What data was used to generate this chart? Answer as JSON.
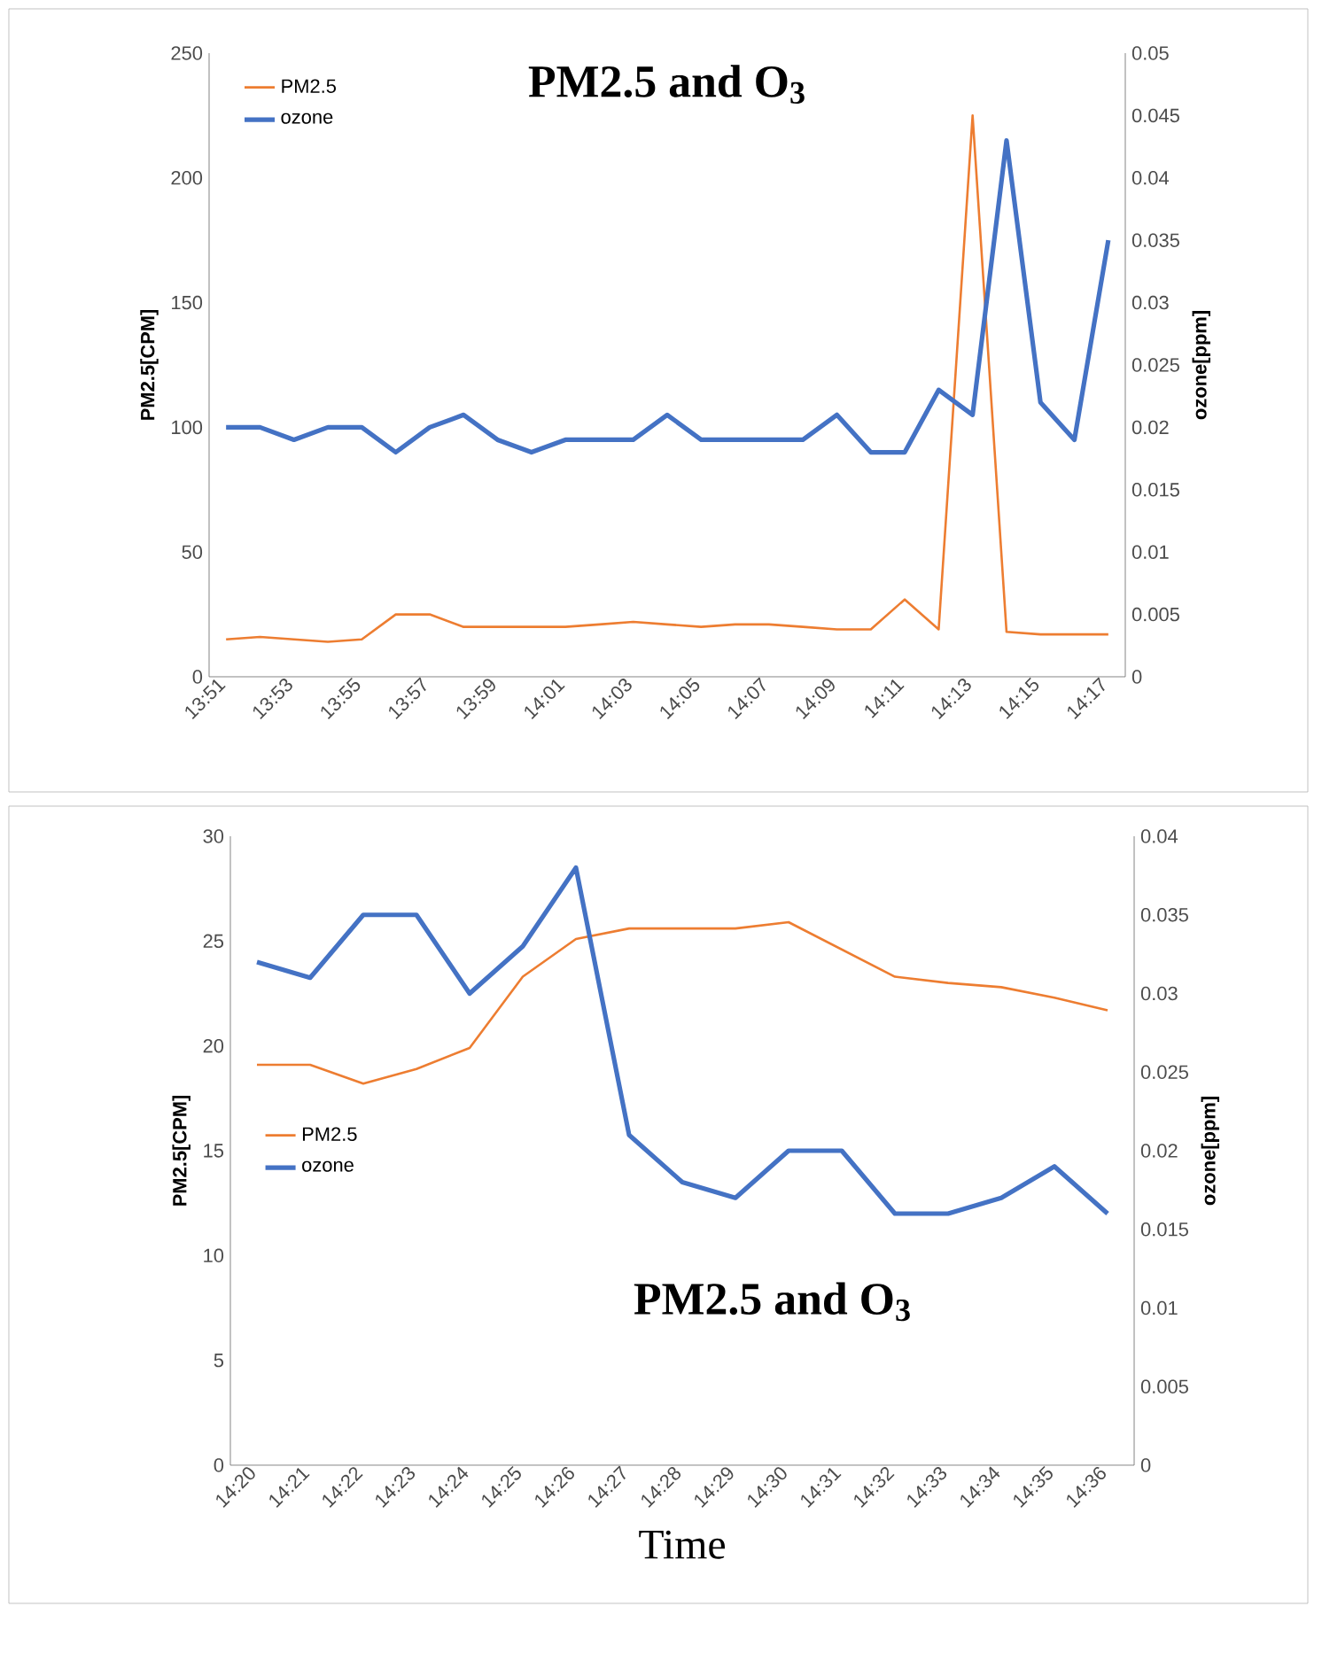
{
  "chart_data": [
    {
      "type": "line",
      "title": "PM2.5 and O$_{3}$",
      "ylabel": "PM2.5[CPM]",
      "y2label": "ozone[ppm]",
      "categories": [
        "13:51",
        null,
        "13:53",
        null,
        "13:55",
        null,
        "13:57",
        null,
        "13:59",
        null,
        "14:01",
        null,
        "14:03",
        null,
        "14:05",
        null,
        "14:07",
        null,
        "14:09",
        null,
        "14:11",
        null,
        "14:13",
        null,
        "14:15",
        null,
        "14:17"
      ],
      "ylim": [
        0,
        250
      ],
      "yticks": [
        0,
        50,
        100,
        150,
        200,
        250
      ],
      "y2lim": [
        0,
        0.05
      ],
      "y2ticks": [
        0,
        0.005,
        0.01,
        0.015,
        0.02,
        0.025,
        0.03,
        0.035,
        0.04,
        0.045,
        0.05
      ],
      "legend": "top left",
      "series": [
        {
          "name": "PM2.5",
          "color": "#ed7d31",
          "values": [
            15,
            16,
            15,
            14,
            15,
            25,
            25,
            20,
            20,
            20,
            20,
            21,
            22,
            21,
            20,
            21,
            21,
            20,
            19,
            19,
            31,
            19,
            225,
            18,
            17,
            17,
            17
          ]
        },
        {
          "name": "ozone",
          "color": "#4472c4",
          "axis": "y2",
          "values": [
            0.02,
            0.02,
            0.019,
            0.02,
            0.02,
            0.018,
            0.02,
            0.021,
            0.019,
            0.018,
            0.019,
            0.019,
            0.019,
            0.021,
            0.019,
            0.019,
            0.019,
            0.019,
            0.021,
            0.018,
            0.018,
            0.023,
            0.021,
            0.043,
            0.022,
            0.019,
            0.035
          ]
        }
      ]
    },
    {
      "type": "line",
      "title": "PM2.5 and O$_{3}$",
      "ylabel": "PM2.5[CPM]",
      "y2label": "ozone[ppm]",
      "xlabel": "Time",
      "categories": [
        "14:20",
        "14:21",
        "14:22",
        "14:23",
        "14:24",
        "14:25",
        "14:26",
        "14:27",
        "14:28",
        "14:29",
        "14:30",
        "14:31",
        "14:32",
        "14:33",
        "14:34",
        "14:35",
        "14:36"
      ],
      "ylim": [
        0,
        30
      ],
      "yticks": [
        0,
        5,
        10,
        15,
        20,
        25,
        30
      ],
      "y2lim": [
        0,
        0.04
      ],
      "y2ticks": [
        0,
        0.005,
        0.01,
        0.015,
        0.02,
        0.025,
        0.03,
        0.035,
        0.04
      ],
      "legend": "left",
      "series": [
        {
          "name": "PM2.5",
          "color": "#ed7d31",
          "values": [
            19.1,
            19.1,
            18.2,
            18.9,
            19.9,
            23.3,
            25.1,
            25.6,
            25.6,
            25.6,
            25.9,
            24.6,
            23.3,
            23.0,
            22.8,
            22.3,
            21.7
          ]
        },
        {
          "name": "ozone",
          "color": "#4472c4",
          "axis": "y2",
          "values": [
            0.032,
            0.031,
            0.035,
            0.035,
            0.03,
            0.033,
            0.038,
            0.021,
            0.018,
            0.017,
            0.02,
            0.02,
            0.016,
            0.016,
            0.017,
            0.019,
            0.016
          ]
        }
      ]
    }
  ]
}
